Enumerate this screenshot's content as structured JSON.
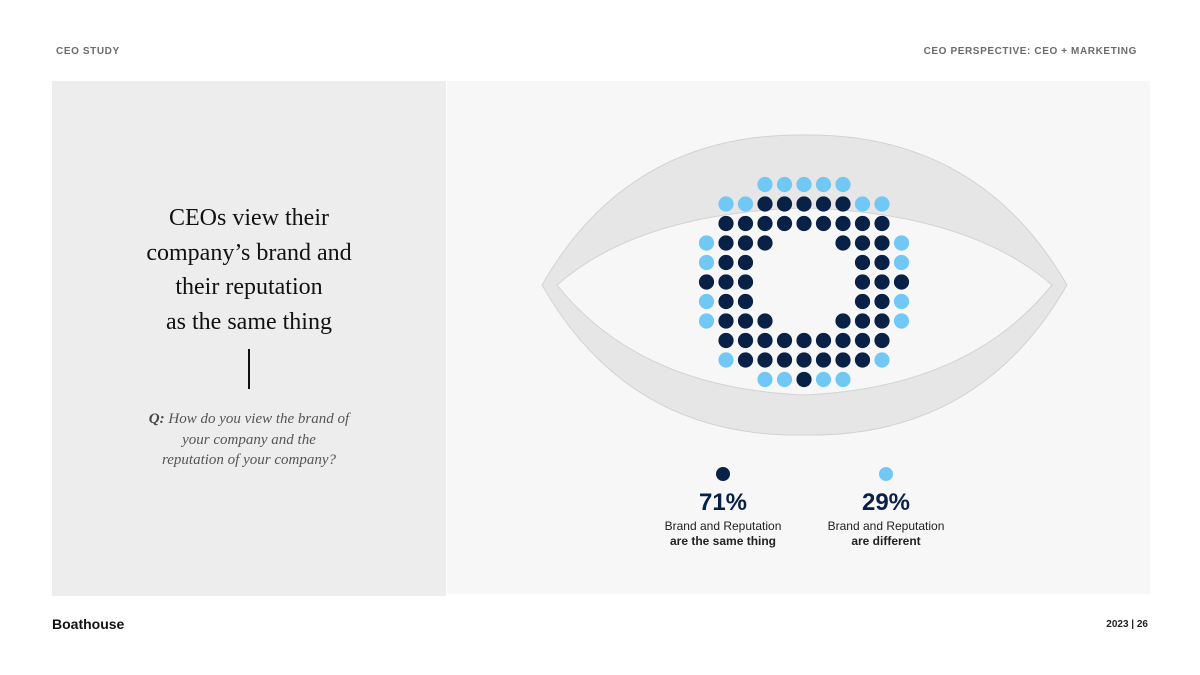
{
  "header": {
    "left": "CEO STUDY",
    "right": "CEO PERSPECTIVE: CEO + MARKETING"
  },
  "headline": [
    "CEOs view their",
    "company’s brand and",
    "their reputation",
    "as the same thing"
  ],
  "question": {
    "prefix": "Q:",
    "line1": "How do you view the brand of",
    "line2": "your company and the",
    "line3": "reputation of your company?"
  },
  "colors": {
    "same": "#0a2147",
    "different": "#72c8f5",
    "eye": "#e5e5e5"
  },
  "chart_data": {
    "type": "pie",
    "categories": [
      "Brand and Reputation are the same thing",
      "Brand and Reputation are different"
    ],
    "values": [
      71,
      29
    ],
    "unit": "%"
  },
  "legend": [
    {
      "pct": "71%",
      "line1": "Brand and Reputation",
      "line2": "are the same thing"
    },
    {
      "pct": "29%",
      "line1": "Brand and Reputation",
      "line2": "are different"
    }
  ],
  "footer": {
    "brand": "Boathouse",
    "page": "2023 | 26"
  }
}
